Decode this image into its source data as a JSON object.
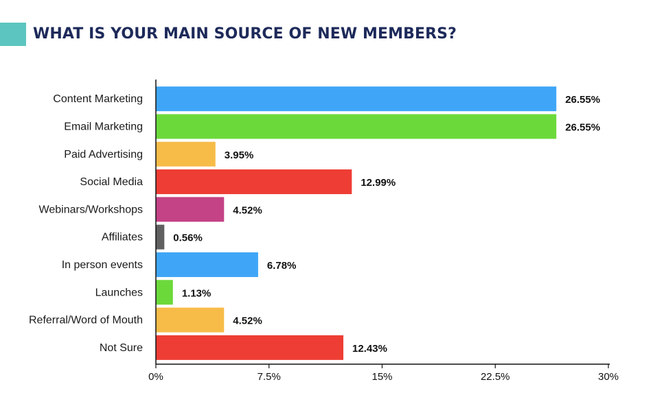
{
  "header": {
    "title": "WHAT IS YOUR MAIN SOURCE OF NEW MEMBERS?",
    "accent_color": "#5cc5bf",
    "title_color": "#1d2a5a"
  },
  "chart_data": {
    "type": "bar",
    "orientation": "horizontal",
    "title": "WHAT IS YOUR MAIN SOURCE OF NEW MEMBERS?",
    "xlabel": "",
    "ylabel": "",
    "xlim": [
      0,
      30
    ],
    "x_ticks": [
      0,
      7.5,
      15,
      22.5,
      30
    ],
    "x_tick_labels": [
      "0%",
      "7.5%",
      "15%",
      "22.5%",
      "30%"
    ],
    "grid": false,
    "categories": [
      "Content Marketing",
      "Email Marketing",
      "Paid Advertising",
      "Social Media",
      "Webinars/Workshops",
      "Affiliates",
      "In person events",
      "Launches",
      "Referral/Word of Mouth",
      "Not Sure"
    ],
    "values": [
      26.55,
      26.55,
      3.95,
      12.99,
      4.52,
      0.56,
      6.78,
      1.13,
      4.52,
      12.43
    ],
    "value_labels": [
      "26.55%",
      "26.55%",
      "3.95%",
      "12.99%",
      "4.52%",
      "0.56%",
      "6.78%",
      "1.13%",
      "4.52%",
      "12.43%"
    ],
    "colors": [
      "#3fa6f7",
      "#6cd93b",
      "#f7bc48",
      "#ee3d34",
      "#c44286",
      "#606060",
      "#3fa6f7",
      "#6cd93b",
      "#f7bc48",
      "#ee3d34"
    ]
  }
}
